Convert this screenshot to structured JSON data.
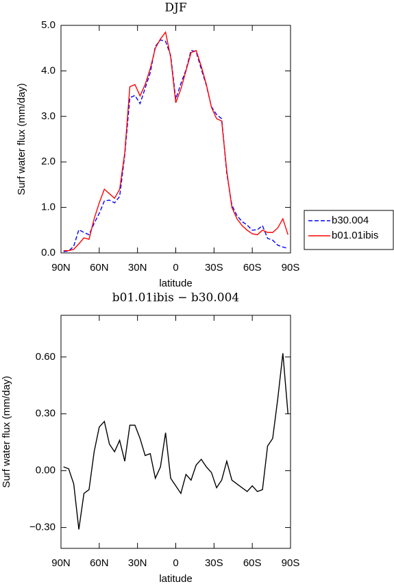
{
  "chart_data": [
    {
      "type": "line",
      "title": "DJF",
      "xlabel": "latitude",
      "ylabel": "Surf water flux (mm/day)",
      "x": [
        88,
        84,
        80,
        76,
        72,
        68,
        64,
        60,
        56,
        52,
        48,
        44,
        40,
        36,
        32,
        28,
        24,
        20,
        16,
        12,
        8,
        4,
        0,
        -4,
        -8,
        -12,
        -16,
        -20,
        -24,
        -28,
        -32,
        -36,
        -40,
        -44,
        -48,
        -52,
        -56,
        -60,
        -64,
        -68,
        -72,
        -76,
        -80,
        -84,
        -88
      ],
      "series": [
        {
          "name": "b30.004",
          "color": "#0000ff",
          "line_style": "dashed",
          "values": [
            0.03,
            0.04,
            0.15,
            0.51,
            0.45,
            0.4,
            0.65,
            0.87,
            1.14,
            1.16,
            1.1,
            1.24,
            2.15,
            3.41,
            3.46,
            3.28,
            3.62,
            3.96,
            4.54,
            4.68,
            4.65,
            4.34,
            3.38,
            3.72,
            4.02,
            4.45,
            4.42,
            4.04,
            3.68,
            3.21,
            3.04,
            2.95,
            1.75,
            1.05,
            0.82,
            0.69,
            0.61,
            0.5,
            0.51,
            0.6,
            0.32,
            0.28,
            0.17,
            0.13,
            0.1
          ]
        },
        {
          "name": "b01.01ibis",
          "color": "#ff0000",
          "line_style": "solid",
          "values": [
            0.05,
            0.05,
            0.08,
            0.2,
            0.33,
            0.3,
            0.75,
            1.1,
            1.4,
            1.3,
            1.2,
            1.4,
            2.2,
            3.65,
            3.7,
            3.45,
            3.7,
            4.05,
            4.5,
            4.7,
            4.85,
            4.3,
            3.3,
            3.6,
            4.0,
            4.4,
            4.45,
            4.1,
            3.7,
            3.2,
            2.95,
            2.9,
            1.8,
            1.0,
            0.75,
            0.6,
            0.5,
            0.42,
            0.4,
            0.5,
            0.45,
            0.45,
            0.55,
            0.75,
            0.4
          ]
        }
      ],
      "xlim": [
        90,
        -90
      ],
      "xticks": [
        {
          "value": 90,
          "label": "90N"
        },
        {
          "value": 60,
          "label": "60N"
        },
        {
          "value": 30,
          "label": "30N"
        },
        0,
        {
          "value": -30,
          "label": "30S"
        },
        {
          "value": -60,
          "label": "60S"
        },
        {
          "value": -90,
          "label": "90S"
        }
      ],
      "ylim": [
        0,
        5
      ],
      "yticks": [
        {
          "value": 0,
          "label": "0.0"
        },
        {
          "value": 1,
          "label": "1.0"
        },
        {
          "value": 2,
          "label": "2.0"
        },
        {
          "value": 3,
          "label": "3.0"
        },
        {
          "value": 4,
          "label": "4.0"
        },
        {
          "value": 5,
          "label": "5.0"
        }
      ],
      "legend": "right"
    },
    {
      "type": "line",
      "title": "b01.01ibis − b30.004",
      "xlabel": "latitude",
      "ylabel": "Surf water flux (mm/day)",
      "x": [
        88,
        84,
        80,
        76,
        72,
        68,
        64,
        60,
        56,
        52,
        48,
        44,
        40,
        36,
        32,
        28,
        24,
        20,
        16,
        12,
        8,
        4,
        0,
        -4,
        -8,
        -12,
        -16,
        -20,
        -24,
        -28,
        -32,
        -36,
        -40,
        -44,
        -48,
        -52,
        -56,
        -60,
        -64,
        -68,
        -72,
        -76,
        -80,
        -84,
        -88
      ],
      "series": [
        {
          "color": "#000000",
          "line_style": "solid",
          "values": [
            0.02,
            0.01,
            -0.07,
            -0.31,
            -0.12,
            -0.1,
            0.1,
            0.23,
            0.26,
            0.14,
            0.1,
            0.16,
            0.05,
            0.24,
            0.24,
            0.17,
            0.08,
            0.09,
            -0.04,
            0.02,
            0.2,
            -0.04,
            -0.08,
            -0.12,
            -0.02,
            -0.05,
            0.03,
            0.06,
            0.02,
            -0.01,
            -0.09,
            -0.05,
            0.05,
            -0.05,
            -0.07,
            -0.09,
            -0.11,
            -0.08,
            -0.11,
            -0.1,
            0.13,
            0.17,
            0.38,
            0.62,
            0.3
          ]
        }
      ],
      "xlim": [
        90,
        -90
      ],
      "xticks": [
        {
          "value": 90,
          "label": "90N"
        },
        {
          "value": 60,
          "label": "60N"
        },
        {
          "value": 30,
          "label": "30N"
        },
        0,
        {
          "value": -30,
          "label": "30S"
        },
        {
          "value": -60,
          "label": "60S"
        },
        {
          "value": -90,
          "label": "90S"
        }
      ],
      "ylim": [
        -0.41,
        0.82
      ],
      "yticks": [
        {
          "value": -0.3,
          "label": "−0.30"
        },
        {
          "value": 0,
          "label": "0.00"
        },
        {
          "value": 0.3,
          "label": "0.30"
        },
        {
          "value": 0.6,
          "label": "0.60"
        }
      ]
    }
  ]
}
